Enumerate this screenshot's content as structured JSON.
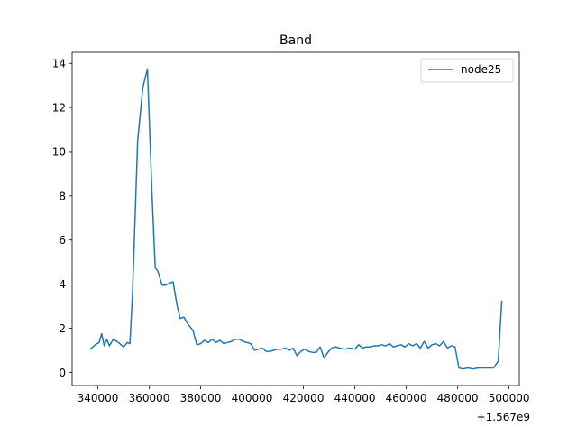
{
  "chart_data": {
    "type": "line",
    "title": "Band",
    "xlabel": "",
    "ylabel": "",
    "x_offset_label": "+1.567e9",
    "xlim": [
      1567330000,
      1567504000
    ],
    "ylim": [
      -0.6,
      14.5
    ],
    "x_ticks": [
      {
        "value": 1567340000,
        "label": "340000"
      },
      {
        "value": 1567360000,
        "label": "360000"
      },
      {
        "value": 1567380000,
        "label": "380000"
      },
      {
        "value": 1567400000,
        "label": "400000"
      },
      {
        "value": 1567420000,
        "label": "420000"
      },
      {
        "value": 1567440000,
        "label": "440000"
      },
      {
        "value": 1567460000,
        "label": "460000"
      },
      {
        "value": 1567480000,
        "label": "480000"
      },
      {
        "value": 1567500000,
        "label": "500000"
      }
    ],
    "y_ticks": [
      {
        "value": 0,
        "label": "0"
      },
      {
        "value": 2,
        "label": "2"
      },
      {
        "value": 4,
        "label": "4"
      },
      {
        "value": 6,
        "label": "6"
      },
      {
        "value": 8,
        "label": "8"
      },
      {
        "value": 10,
        "label": "10"
      },
      {
        "value": 12,
        "label": "12"
      },
      {
        "value": 14,
        "label": "14"
      }
    ],
    "grid": false,
    "legend_position": "upper-right",
    "series": [
      {
        "name": "node25",
        "color": "#1f77b4",
        "x": [
          1567337000,
          1567339000,
          1567340500,
          1567341500,
          1567342500,
          1567343500,
          1567344500,
          1567346000,
          1567348000,
          1567350000,
          1567351500,
          1567352500,
          1567353500,
          1567355500,
          1567357500,
          1567359300,
          1567361000,
          1567362300,
          1567363300,
          1567365000,
          1567366300,
          1567368000,
          1567369300,
          1567370800,
          1567372000,
          1567373500,
          1567375000,
          1567377000,
          1567378500,
          1567380000,
          1567381500,
          1567383000,
          1567384500,
          1567386000,
          1567387500,
          1567389000,
          1567390500,
          1567392000,
          1567393500,
          1567395000,
          1567396500,
          1567398000,
          1567399500,
          1567401000,
          1567402500,
          1567404000,
          1567405500,
          1567407000,
          1567408500,
          1567410000,
          1567411500,
          1567413000,
          1567414500,
          1567416000,
          1567417500,
          1567419000,
          1567420500,
          1567422000,
          1567423500,
          1567425000,
          1567426500,
          1567428000,
          1567429500,
          1567431000,
          1567432500,
          1567434000,
          1567436000,
          1567438000,
          1567440000,
          1567441500,
          1567443000,
          1567444500,
          1567446000,
          1567447500,
          1567449000,
          1567450500,
          1567452000,
          1567453500,
          1567455000,
          1567456500,
          1567458000,
          1567459500,
          1567461000,
          1567462500,
          1567464000,
          1567465500,
          1567467000,
          1567468500,
          1567470000,
          1567471500,
          1567473000,
          1567474500,
          1567476000,
          1567477500,
          1567479000,
          1567480500,
          1567482000,
          1567484000,
          1567486000,
          1567488000,
          1567490000,
          1567492000,
          1567494000,
          1567495800,
          1567497200
        ],
        "y": [
          1.05,
          1.25,
          1.35,
          1.75,
          1.2,
          1.5,
          1.2,
          1.5,
          1.35,
          1.15,
          1.35,
          1.3,
          3.6,
          10.5,
          12.9,
          13.75,
          8.3,
          4.75,
          4.6,
          3.95,
          3.95,
          4.05,
          4.1,
          3.05,
          2.45,
          2.5,
          2.2,
          1.9,
          1.25,
          1.3,
          1.45,
          1.35,
          1.5,
          1.35,
          1.45,
          1.3,
          1.35,
          1.4,
          1.5,
          1.5,
          1.4,
          1.35,
          1.3,
          1.0,
          1.05,
          1.1,
          0.95,
          0.95,
          1.0,
          1.05,
          1.05,
          1.1,
          1.0,
          1.1,
          0.75,
          0.95,
          1.05,
          0.95,
          0.9,
          0.9,
          1.15,
          0.65,
          0.9,
          1.1,
          1.15,
          1.1,
          1.05,
          1.1,
          1.05,
          1.25,
          1.1,
          1.15,
          1.15,
          1.2,
          1.2,
          1.25,
          1.2,
          1.3,
          1.15,
          1.2,
          1.25,
          1.15,
          1.3,
          1.2,
          1.3,
          1.1,
          1.4,
          1.1,
          1.25,
          1.3,
          1.2,
          1.4,
          1.1,
          1.2,
          1.15,
          0.2,
          0.15,
          0.2,
          0.15,
          0.2,
          0.2,
          0.2,
          0.2,
          0.5,
          3.25
        ]
      }
    ]
  }
}
